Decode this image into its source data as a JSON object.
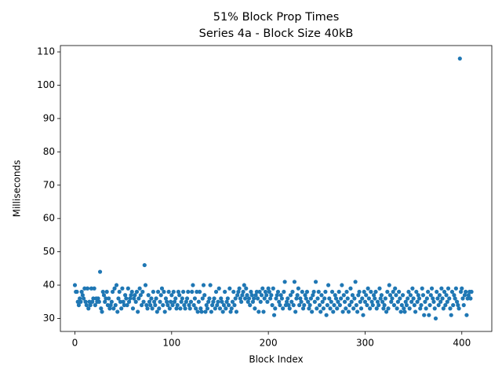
{
  "chart_data": {
    "type": "scatter",
    "title": "51% Block Prop Times",
    "subtitle": "Series 4a - Block Size 40kB",
    "x_label": "Block Index",
    "y_label": "Milliseconds",
    "color": "#1f77b4",
    "grid": false,
    "xlim": [
      -15,
      431
    ],
    "ylim": [
      26.1,
      111.9
    ],
    "xticks": [
      0,
      100,
      200,
      300,
      400
    ],
    "yticks": [
      30,
      40,
      50,
      60,
      70,
      80,
      90,
      100,
      110
    ],
    "x": [
      0,
      1,
      2,
      3,
      4,
      5,
      6,
      7,
      8,
      9,
      10,
      11,
      12,
      13,
      14,
      15,
      16,
      17,
      18,
      19,
      20,
      21,
      22,
      23,
      24,
      25,
      26,
      27,
      28,
      29,
      30,
      31,
      32,
      33,
      34,
      35,
      36,
      37,
      38,
      39,
      40,
      41,
      42,
      43,
      44,
      45,
      46,
      47,
      48,
      49,
      50,
      51,
      52,
      53,
      54,
      55,
      56,
      57,
      58,
      59,
      60,
      61,
      62,
      63,
      64,
      65,
      66,
      67,
      68,
      69,
      70,
      71,
      72,
      73,
      74,
      75,
      76,
      77,
      78,
      79,
      80,
      81,
      82,
      83,
      84,
      85,
      86,
      87,
      88,
      89,
      90,
      91,
      92,
      93,
      94,
      95,
      96,
      97,
      98,
      99,
      100,
      101,
      102,
      103,
      104,
      105,
      106,
      107,
      108,
      109,
      110,
      111,
      112,
      113,
      114,
      115,
      116,
      117,
      118,
      119,
      120,
      121,
      122,
      123,
      124,
      125,
      126,
      127,
      128,
      129,
      130,
      131,
      132,
      133,
      134,
      135,
      136,
      137,
      138,
      139,
      140,
      141,
      142,
      143,
      144,
      145,
      146,
      147,
      148,
      149,
      150,
      151,
      152,
      153,
      154,
      155,
      156,
      157,
      158,
      159,
      160,
      161,
      162,
      163,
      164,
      165,
      166,
      167,
      168,
      169,
      170,
      171,
      172,
      173,
      174,
      175,
      176,
      177,
      178,
      179,
      180,
      181,
      182,
      183,
      184,
      185,
      186,
      187,
      188,
      189,
      190,
      191,
      192,
      193,
      194,
      195,
      196,
      197,
      198,
      199,
      200,
      201,
      202,
      203,
      204,
      205,
      206,
      207,
      208,
      209,
      210,
      211,
      212,
      213,
      214,
      215,
      216,
      217,
      218,
      219,
      220,
      221,
      222,
      223,
      224,
      225,
      226,
      227,
      228,
      229,
      230,
      231,
      232,
      233,
      234,
      235,
      236,
      237,
      238,
      239,
      240,
      241,
      242,
      243,
      244,
      245,
      246,
      247,
      248,
      249,
      250,
      251,
      252,
      253,
      254,
      255,
      256,
      257,
      258,
      259,
      260,
      261,
      262,
      263,
      264,
      265,
      266,
      267,
      268,
      269,
      270,
      271,
      272,
      273,
      274,
      275,
      276,
      277,
      278,
      279,
      280,
      281,
      282,
      283,
      284,
      285,
      286,
      287,
      288,
      289,
      290,
      291,
      292,
      293,
      294,
      295,
      296,
      297,
      298,
      299,
      300,
      301,
      302,
      303,
      304,
      305,
      306,
      307,
      308,
      309,
      310,
      311,
      312,
      313,
      314,
      315,
      316,
      317,
      318,
      319,
      320,
      321,
      322,
      323,
      324,
      325,
      326,
      327,
      328,
      329,
      330,
      331,
      332,
      333,
      334,
      335,
      336,
      337,
      338,
      339,
      340,
      341,
      342,
      343,
      344,
      345,
      346,
      347,
      348,
      349,
      350,
      351,
      352,
      353,
      354,
      355,
      356,
      357,
      358,
      359,
      360,
      361,
      362,
      363,
      364,
      365,
      366,
      367,
      368,
      369,
      370,
      371,
      372,
      373,
      374,
      375,
      376,
      377,
      378,
      379,
      380,
      381,
      382,
      383,
      384,
      385,
      386,
      387,
      388,
      389,
      390,
      391,
      392,
      393,
      394,
      395,
      396,
      397,
      398,
      399,
      400,
      401,
      402,
      403,
      404,
      405,
      406,
      407,
      408,
      409,
      410
    ],
    "values": [
      40,
      38,
      38,
      35,
      34,
      36,
      35,
      38,
      37,
      36,
      39,
      35,
      34,
      39,
      33,
      35,
      34,
      39,
      35,
      36,
      39,
      34,
      36,
      35,
      36,
      35,
      44,
      33,
      32,
      38,
      37,
      35,
      36,
      38,
      34,
      36,
      33,
      34,
      35,
      38,
      33,
      39,
      34,
      40,
      32,
      36,
      38,
      35,
      33,
      39,
      35,
      34,
      37,
      36,
      34,
      39,
      35,
      36,
      37,
      38,
      33,
      36,
      37,
      35,
      38,
      32,
      36,
      39,
      37,
      34,
      38,
      35,
      46,
      40,
      34,
      33,
      37,
      35,
      34,
      36,
      33,
      38,
      35,
      34,
      36,
      32,
      38,
      33,
      35,
      37,
      39,
      34,
      38,
      32,
      36,
      35,
      34,
      38,
      33,
      35,
      37,
      34,
      38,
      35,
      36,
      33,
      34,
      38,
      37,
      33,
      35,
      36,
      38,
      34,
      33,
      35,
      36,
      38,
      34,
      33,
      35,
      38,
      40,
      34,
      36,
      33,
      38,
      32,
      35,
      38,
      33,
      32,
      36,
      40,
      37,
      32,
      34,
      33,
      35,
      36,
      40,
      32,
      34,
      35,
      36,
      33,
      38,
      34,
      35,
      39,
      33,
      36,
      35,
      32,
      34,
      38,
      33,
      35,
      36,
      34,
      39,
      32,
      33,
      35,
      38,
      34,
      36,
      32,
      37,
      38,
      39,
      36,
      35,
      37,
      38,
      40,
      36,
      39,
      37,
      35,
      36,
      34,
      38,
      37,
      35,
      36,
      33,
      37,
      38,
      36,
      32,
      38,
      35,
      37,
      39,
      32,
      36,
      38,
      37,
      35,
      39,
      38,
      36,
      37,
      34,
      39,
      31,
      33,
      36,
      37,
      38,
      35,
      34,
      37,
      36,
      33,
      38,
      41,
      34,
      35,
      36,
      34,
      33,
      37,
      35,
      38,
      34,
      41,
      32,
      36,
      37,
      39,
      34,
      36,
      35,
      38,
      33,
      34,
      37,
      36,
      38,
      35,
      33,
      34,
      36,
      32,
      37,
      38,
      35,
      41,
      33,
      36,
      38,
      34,
      32,
      37,
      35,
      33,
      36,
      38,
      31,
      34,
      40,
      36,
      33,
      35,
      38,
      32,
      34,
      37,
      36,
      33,
      35,
      38,
      34,
      36,
      40,
      32,
      37,
      35,
      33,
      38,
      36,
      32,
      34,
      39,
      35,
      37,
      33,
      36,
      41,
      34,
      32,
      37,
      38,
      35,
      33,
      36,
      31,
      38,
      35,
      37,
      34,
      39,
      36,
      33,
      38,
      35,
      34,
      37,
      36,
      38,
      33,
      35,
      34,
      39,
      36,
      37,
      35,
      33,
      34,
      36,
      32,
      38,
      33,
      40,
      37,
      35,
      36,
      38,
      34,
      39,
      37,
      33,
      35,
      38,
      36,
      32,
      34,
      37,
      33,
      32,
      35,
      34,
      36,
      38,
      33,
      37,
      35,
      39,
      36,
      34,
      32,
      38,
      35,
      37,
      36,
      33,
      34,
      39,
      37,
      31,
      35,
      33,
      36,
      38,
      31,
      34,
      37,
      39,
      36,
      35,
      33,
      30,
      38,
      36,
      34,
      37,
      35,
      39,
      36,
      33,
      38,
      34,
      37,
      35,
      39,
      36,
      33,
      31,
      38,
      34,
      37,
      36,
      39,
      35,
      34,
      33,
      108,
      38,
      39,
      36,
      34,
      37,
      38,
      31,
      36,
      37,
      38,
      36,
      38
    ]
  }
}
